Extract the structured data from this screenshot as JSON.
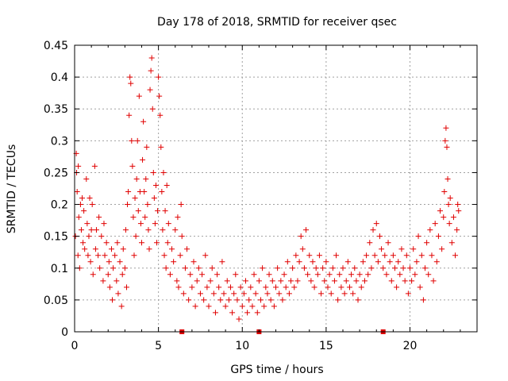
{
  "chart_data": {
    "type": "scatter",
    "title": "Day 178 of 2018, SRMTID for receiver qsec",
    "xlabel": "GPS time / hours",
    "ylabel": "SRMTID / TECUs",
    "xlim": [
      0,
      24
    ],
    "ylim": [
      0,
      0.45
    ],
    "x_ticks": [
      0,
      5,
      10,
      15,
      20
    ],
    "x_tick_labels": [
      "0",
      "5",
      "10",
      "15",
      "20"
    ],
    "y_ticks": [
      0,
      0.05,
      0.1,
      0.15,
      0.2,
      0.25,
      0.3,
      0.35,
      0.4,
      0.45
    ],
    "y_tick_labels": [
      "0",
      "0.05",
      "0.1",
      "0.15",
      "0.2",
      "0.25",
      "0.3",
      "0.35",
      "0.4",
      "0.45"
    ],
    "grid": true,
    "series_color": "#e00000",
    "marker": "plus",
    "points": [
      [
        0.05,
        0.15
      ],
      [
        0.1,
        0.28
      ],
      [
        0.12,
        0.25
      ],
      [
        0.15,
        0.22
      ],
      [
        0.2,
        0.12
      ],
      [
        0.22,
        0.26
      ],
      [
        0.25,
        0.18
      ],
      [
        0.3,
        0.1
      ],
      [
        0.35,
        0.2
      ],
      [
        0.4,
        0.16
      ],
      [
        0.45,
        0.21
      ],
      [
        0.5,
        0.14
      ],
      [
        0.55,
        0.19
      ],
      [
        0.6,
        0.13
      ],
      [
        0.7,
        0.24
      ],
      [
        0.75,
        0.17
      ],
      [
        0.8,
        0.12
      ],
      [
        0.85,
        0.15
      ],
      [
        0.9,
        0.21
      ],
      [
        0.95,
        0.11
      ],
      [
        1.0,
        0.16
      ],
      [
        1.05,
        0.2
      ],
      [
        1.1,
        0.09
      ],
      [
        1.2,
        0.26
      ],
      [
        1.25,
        0.13
      ],
      [
        1.3,
        0.16
      ],
      [
        1.4,
        0.12
      ],
      [
        1.45,
        0.18
      ],
      [
        1.5,
        0.1
      ],
      [
        1.6,
        0.15
      ],
      [
        1.7,
        0.08
      ],
      [
        1.75,
        0.17
      ],
      [
        1.8,
        0.12
      ],
      [
        1.9,
        0.14
      ],
      [
        2.0,
        0.09
      ],
      [
        2.05,
        0.11
      ],
      [
        2.1,
        0.07
      ],
      [
        2.2,
        0.13
      ],
      [
        2.25,
        0.05
      ],
      [
        2.3,
        0.1
      ],
      [
        2.4,
        0.12
      ],
      [
        2.5,
        0.08
      ],
      [
        2.55,
        0.14
      ],
      [
        2.6,
        0.06
      ],
      [
        2.7,
        0.11
      ],
      [
        2.8,
        0.04
      ],
      [
        2.85,
        0.09
      ],
      [
        2.9,
        0.13
      ],
      [
        3.0,
        0.1
      ],
      [
        3.05,
        0.16
      ],
      [
        3.1,
        0.07
      ],
      [
        3.15,
        0.2
      ],
      [
        3.2,
        0.22
      ],
      [
        3.25,
        0.34
      ],
      [
        3.3,
        0.4
      ],
      [
        3.35,
        0.39
      ],
      [
        3.4,
        0.3
      ],
      [
        3.45,
        0.26
      ],
      [
        3.5,
        0.18
      ],
      [
        3.55,
        0.12
      ],
      [
        3.6,
        0.21
      ],
      [
        3.65,
        0.15
      ],
      [
        3.7,
        0.24
      ],
      [
        3.75,
        0.3
      ],
      [
        3.8,
        0.19
      ],
      [
        3.85,
        0.37
      ],
      [
        3.9,
        0.22
      ],
      [
        3.95,
        0.17
      ],
      [
        4.0,
        0.14
      ],
      [
        4.05,
        0.27
      ],
      [
        4.1,
        0.33
      ],
      [
        4.15,
        0.22
      ],
      [
        4.2,
        0.18
      ],
      [
        4.25,
        0.24
      ],
      [
        4.3,
        0.29
      ],
      [
        4.35,
        0.2
      ],
      [
        4.4,
        0.16
      ],
      [
        4.45,
        0.13
      ],
      [
        4.5,
        0.38
      ],
      [
        4.55,
        0.41
      ],
      [
        4.6,
        0.43
      ],
      [
        4.65,
        0.35
      ],
      [
        4.7,
        0.25
      ],
      [
        4.75,
        0.21
      ],
      [
        4.8,
        0.17
      ],
      [
        4.85,
        0.23
      ],
      [
        4.9,
        0.14
      ],
      [
        4.95,
        0.19
      ],
      [
        5.0,
        0.4
      ],
      [
        5.05,
        0.37
      ],
      [
        5.1,
        0.34
      ],
      [
        5.15,
        0.29
      ],
      [
        5.2,
        0.22
      ],
      [
        5.25,
        0.16
      ],
      [
        5.3,
        0.25
      ],
      [
        5.35,
        0.12
      ],
      [
        5.4,
        0.19
      ],
      [
        5.45,
        0.1
      ],
      [
        5.5,
        0.23
      ],
      [
        5.55,
        0.14
      ],
      [
        5.6,
        0.17
      ],
      [
        5.7,
        0.09
      ],
      [
        5.8,
        0.13
      ],
      [
        5.9,
        0.11
      ],
      [
        6.0,
        0.16
      ],
      [
        6.1,
        0.08
      ],
      [
        6.15,
        0.18
      ],
      [
        6.2,
        0.07
      ],
      [
        6.3,
        0.12
      ],
      [
        6.35,
        0.2
      ],
      [
        6.4,
        0.15
      ],
      [
        6.5,
        0.06
      ],
      [
        6.6,
        0.1
      ],
      [
        6.7,
        0.13
      ],
      [
        6.8,
        0.05
      ],
      [
        6.9,
        0.09
      ],
      [
        7.0,
        0.07
      ],
      [
        7.1,
        0.11
      ],
      [
        7.2,
        0.04
      ],
      [
        7.3,
        0.08
      ],
      [
        7.4,
        0.1
      ],
      [
        7.5,
        0.06
      ],
      [
        7.6,
        0.09
      ],
      [
        7.7,
        0.05
      ],
      [
        7.8,
        0.12
      ],
      [
        7.9,
        0.07
      ],
      [
        8.0,
        0.04
      ],
      [
        8.1,
        0.08
      ],
      [
        8.2,
        0.1
      ],
      [
        8.3,
        0.06
      ],
      [
        8.4,
        0.03
      ],
      [
        8.5,
        0.09
      ],
      [
        8.6,
        0.07
      ],
      [
        8.7,
        0.05
      ],
      [
        8.8,
        0.11
      ],
      [
        8.9,
        0.06
      ],
      [
        9.0,
        0.04
      ],
      [
        9.1,
        0.08
      ],
      [
        9.2,
        0.05
      ],
      [
        9.3,
        0.07
      ],
      [
        9.4,
        0.03
      ],
      [
        9.5,
        0.06
      ],
      [
        9.6,
        0.09
      ],
      [
        9.7,
        0.05
      ],
      [
        9.8,
        0.02
      ],
      [
        9.9,
        0.07
      ],
      [
        10.0,
        0.04
      ],
      [
        10.1,
        0.06
      ],
      [
        10.2,
        0.08
      ],
      [
        10.3,
        0.03
      ],
      [
        10.4,
        0.05
      ],
      [
        10.5,
        0.07
      ],
      [
        10.6,
        0.04
      ],
      [
        10.7,
        0.09
      ],
      [
        10.8,
        0.06
      ],
      [
        10.9,
        0.03
      ],
      [
        11.0,
        0.08
      ],
      [
        11.1,
        0.05
      ],
      [
        11.2,
        0.1
      ],
      [
        11.3,
        0.04
      ],
      [
        11.4,
        0.07
      ],
      [
        11.5,
        0.06
      ],
      [
        11.6,
        0.09
      ],
      [
        11.7,
        0.05
      ],
      [
        11.8,
        0.08
      ],
      [
        11.9,
        0.04
      ],
      [
        12.0,
        0.07
      ],
      [
        12.1,
        0.1
      ],
      [
        12.2,
        0.06
      ],
      [
        12.3,
        0.08
      ],
      [
        12.4,
        0.05
      ],
      [
        12.5,
        0.09
      ],
      [
        12.6,
        0.07
      ],
      [
        12.7,
        0.11
      ],
      [
        12.8,
        0.06
      ],
      [
        12.9,
        0.08
      ],
      [
        13.0,
        0.1
      ],
      [
        13.1,
        0.07
      ],
      [
        13.2,
        0.12
      ],
      [
        13.3,
        0.08
      ],
      [
        13.4,
        0.11
      ],
      [
        13.5,
        0.15
      ],
      [
        13.6,
        0.13
      ],
      [
        13.7,
        0.1
      ],
      [
        13.8,
        0.16
      ],
      [
        13.9,
        0.09
      ],
      [
        14.0,
        0.12
      ],
      [
        14.1,
        0.08
      ],
      [
        14.2,
        0.11
      ],
      [
        14.3,
        0.07
      ],
      [
        14.4,
        0.1
      ],
      [
        14.5,
        0.09
      ],
      [
        14.6,
        0.12
      ],
      [
        14.7,
        0.06
      ],
      [
        14.8,
        0.1
      ],
      [
        14.9,
        0.08
      ],
      [
        15.0,
        0.11
      ],
      [
        15.1,
        0.07
      ],
      [
        15.2,
        0.09
      ],
      [
        15.3,
        0.06
      ],
      [
        15.4,
        0.1
      ],
      [
        15.5,
        0.08
      ],
      [
        15.6,
        0.12
      ],
      [
        15.7,
        0.05
      ],
      [
        15.8,
        0.09
      ],
      [
        15.9,
        0.07
      ],
      [
        16.0,
        0.1
      ],
      [
        16.1,
        0.06
      ],
      [
        16.2,
        0.08
      ],
      [
        16.3,
        0.11
      ],
      [
        16.4,
        0.07
      ],
      [
        16.5,
        0.09
      ],
      [
        16.6,
        0.06
      ],
      [
        16.7,
        0.1
      ],
      [
        16.8,
        0.08
      ],
      [
        16.9,
        0.05
      ],
      [
        17.0,
        0.09
      ],
      [
        17.1,
        0.07
      ],
      [
        17.2,
        0.11
      ],
      [
        17.3,
        0.08
      ],
      [
        17.4,
        0.12
      ],
      [
        17.5,
        0.09
      ],
      [
        17.6,
        0.14
      ],
      [
        17.7,
        0.1
      ],
      [
        17.8,
        0.16
      ],
      [
        17.9,
        0.12
      ],
      [
        18.0,
        0.17
      ],
      [
        18.1,
        0.11
      ],
      [
        18.2,
        0.15
      ],
      [
        18.3,
        0.13
      ],
      [
        18.4,
        0.1
      ],
      [
        18.5,
        0.12
      ],
      [
        18.6,
        0.09
      ],
      [
        18.7,
        0.14
      ],
      [
        18.8,
        0.11
      ],
      [
        18.9,
        0.08
      ],
      [
        19.0,
        0.12
      ],
      [
        19.1,
        0.1
      ],
      [
        19.2,
        0.07
      ],
      [
        19.3,
        0.11
      ],
      [
        19.4,
        0.09
      ],
      [
        19.5,
        0.13
      ],
      [
        19.6,
        0.1
      ],
      [
        19.7,
        0.08
      ],
      [
        19.8,
        0.12
      ],
      [
        19.9,
        0.06
      ],
      [
        20.0,
        0.1
      ],
      [
        20.1,
        0.08
      ],
      [
        20.2,
        0.13
      ],
      [
        20.3,
        0.09
      ],
      [
        20.4,
        0.11
      ],
      [
        20.5,
        0.15
      ],
      [
        20.6,
        0.07
      ],
      [
        20.7,
        0.12
      ],
      [
        20.8,
        0.05
      ],
      [
        20.9,
        0.1
      ],
      [
        21.0,
        0.14
      ],
      [
        21.1,
        0.09
      ],
      [
        21.2,
        0.16
      ],
      [
        21.3,
        0.12
      ],
      [
        21.4,
        0.08
      ],
      [
        21.5,
        0.17
      ],
      [
        21.6,
        0.11
      ],
      [
        21.7,
        0.15
      ],
      [
        21.8,
        0.19
      ],
      [
        21.9,
        0.13
      ],
      [
        22.0,
        0.18
      ],
      [
        22.05,
        0.22
      ],
      [
        22.1,
        0.3
      ],
      [
        22.15,
        0.32
      ],
      [
        22.2,
        0.29
      ],
      [
        22.25,
        0.24
      ],
      [
        22.3,
        0.2
      ],
      [
        22.35,
        0.17
      ],
      [
        22.4,
        0.21
      ],
      [
        22.5,
        0.14
      ],
      [
        22.6,
        0.18
      ],
      [
        22.7,
        0.12
      ],
      [
        22.8,
        0.16
      ],
      [
        22.85,
        0.2
      ],
      [
        22.9,
        0.19
      ]
    ],
    "baseline_markers": [
      6.4,
      11.0,
      18.4
    ]
  }
}
